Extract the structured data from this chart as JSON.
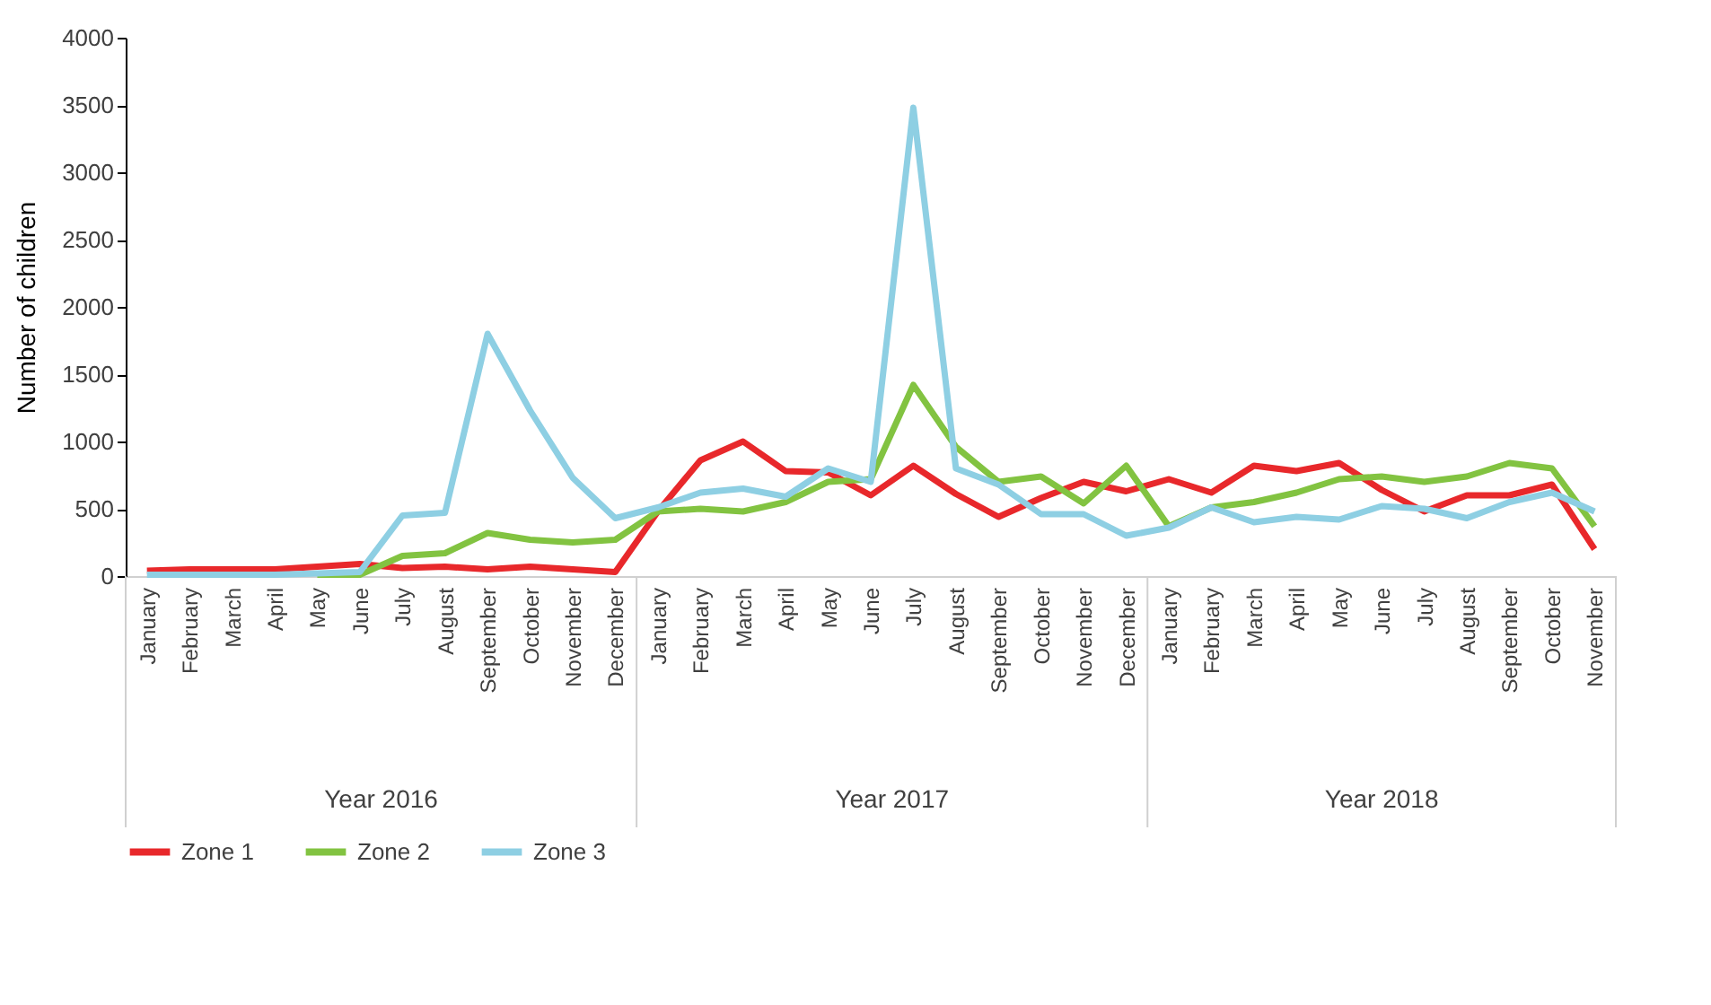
{
  "chart_data": {
    "type": "line",
    "ylabel": "Number of children",
    "categories": [
      "January",
      "February",
      "March",
      "April",
      "May",
      "June",
      "July",
      "August",
      "September",
      "October",
      "November",
      "December",
      "January",
      "February",
      "March",
      "April",
      "May",
      "June",
      "July",
      "August",
      "September",
      "October",
      "November",
      "December",
      "January",
      "February",
      "March",
      "April",
      "May",
      "June",
      "July",
      "August",
      "September",
      "October",
      "November"
    ],
    "series": [
      {
        "name": "Zone 1",
        "color": "#e8282b",
        "values": [
          40,
          50,
          50,
          50,
          70,
          90,
          60,
          70,
          50,
          70,
          50,
          30,
          480,
          860,
          1000,
          780,
          770,
          600,
          820,
          610,
          440,
          580,
          700,
          630,
          720,
          620,
          820,
          780,
          840,
          640,
          480,
          600,
          600,
          680,
          200
        ]
      },
      {
        "name": "Zone 2",
        "color": "#82c341",
        "values": [
          null,
          null,
          null,
          null,
          10,
          10,
          150,
          170,
          320,
          270,
          250,
          270,
          480,
          500,
          480,
          550,
          700,
          720,
          1420,
          960,
          700,
          740,
          540,
          820,
          370,
          510,
          550,
          620,
          720,
          740,
          700,
          740,
          840,
          800,
          370
        ]
      },
      {
        "name": "Zone 3",
        "color": "#8ecfe3",
        "values": [
          10,
          10,
          10,
          10,
          20,
          30,
          450,
          470,
          1800,
          1230,
          730,
          430,
          510,
          620,
          650,
          590,
          800,
          700,
          3480,
          800,
          680,
          460,
          460,
          300,
          360,
          510,
          400,
          440,
          420,
          520,
          500,
          430,
          550,
          620,
          480
        ]
      }
    ],
    "annotations": [
      "Year 2016",
      "Year 2017",
      "Year 2018"
    ],
    "ylim": [
      0,
      4000
    ],
    "yticks": [
      0,
      500,
      {
        "value": 1000,
        "label": "1000"
      },
      {
        "value": 1500,
        "label": "1500"
      },
      {
        "value": 2000,
        "label": "2000"
      },
      {
        "value": 2500,
        "label": "2500"
      },
      {
        "value": 3000,
        "label": "3000"
      },
      {
        "value": 3500,
        "label": "3500"
      },
      {
        "value": 4000,
        "label": "4000"
      }
    ],
    "grid": false,
    "legend": "bottom"
  }
}
